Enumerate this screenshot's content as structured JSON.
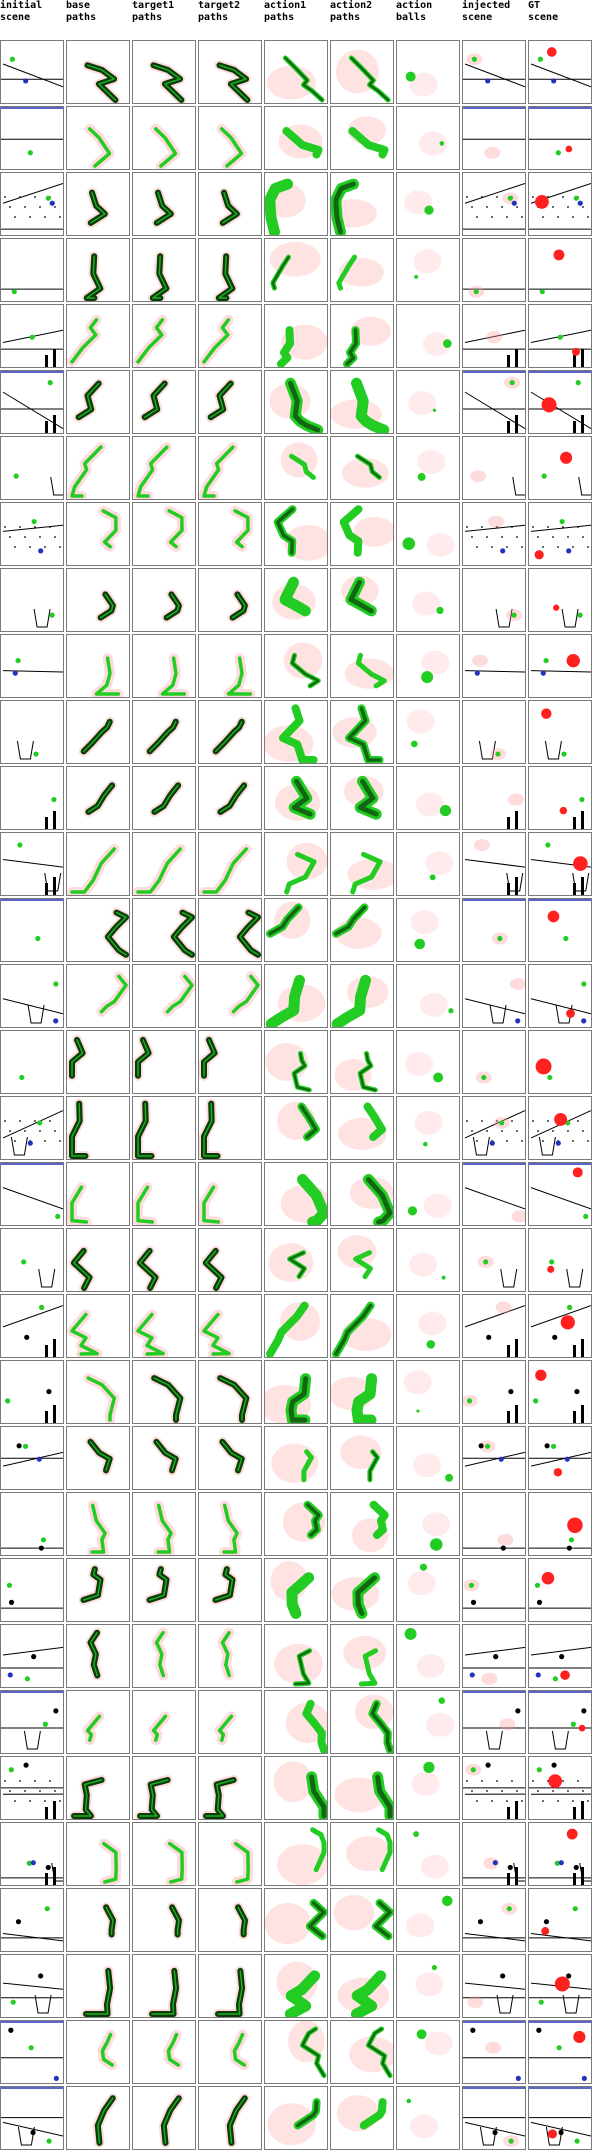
{
  "columns": [
    {
      "key": "initial_scene",
      "label": "initial\nscene",
      "kind": "scene"
    },
    {
      "key": "base_paths",
      "label": "base\npaths",
      "kind": "paths"
    },
    {
      "key": "target1_paths",
      "label": "target1\npaths",
      "kind": "paths"
    },
    {
      "key": "target2_paths",
      "label": "target2\npaths",
      "kind": "paths"
    },
    {
      "key": "action1_paths",
      "label": "action1\npaths",
      "kind": "action"
    },
    {
      "key": "action2_paths",
      "label": "action2\npaths",
      "kind": "action"
    },
    {
      "key": "action_balls",
      "label": "action\nballs",
      "kind": "balls"
    },
    {
      "key": "injected_scene",
      "label": "injected\nscene",
      "kind": "scene"
    },
    {
      "key": "gt_scene",
      "label": "GT\nscene",
      "kind": "gt"
    }
  ],
  "colors": {
    "green": "#22cc22",
    "dark_green": "#0a3a0a",
    "red": "#ff2020",
    "red_haze": "#ff9a9a",
    "blue": "#2233bb",
    "black": "#000000",
    "grid_border": "#7a7a7a"
  },
  "row_count": 32
}
